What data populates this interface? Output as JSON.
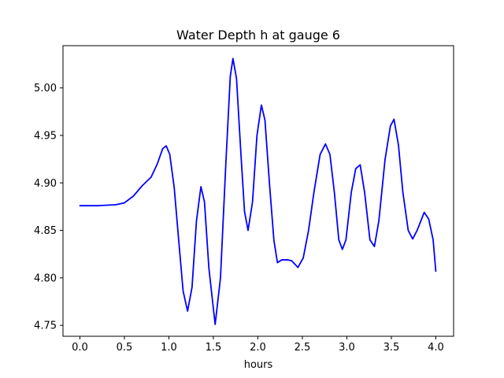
{
  "chart_data": {
    "type": "line",
    "title": "Water Depth h at gauge 6",
    "xlabel": "hours",
    "ylabel": "",
    "xlim": [
      -0.19,
      4.2
    ],
    "ylim": [
      4.7385,
      5.0445
    ],
    "xticks": [
      0.0,
      0.5,
      1.0,
      1.5,
      2.0,
      2.5,
      3.0,
      3.5,
      4.0
    ],
    "xtick_labels": [
      "0.0",
      "0.5",
      "1.0",
      "1.5",
      "2.0",
      "2.5",
      "3.0",
      "3.5",
      "4.0"
    ],
    "yticks": [
      4.75,
      4.8,
      4.85,
      4.9,
      4.95,
      5.0
    ],
    "ytick_labels": [
      "4.75",
      "4.80",
      "4.85",
      "4.90",
      "4.95",
      "5.00"
    ],
    "grid": false,
    "series": [
      {
        "color": "#0000ff",
        "points": [
          [
            0.0,
            4.876
          ],
          [
            0.2,
            4.876
          ],
          [
            0.4,
            4.877
          ],
          [
            0.5,
            4.879
          ],
          [
            0.6,
            4.886
          ],
          [
            0.7,
            4.897
          ],
          [
            0.8,
            4.906
          ],
          [
            0.87,
            4.92
          ],
          [
            0.93,
            4.936
          ],
          [
            0.97,
            4.939
          ],
          [
            1.01,
            4.93
          ],
          [
            1.06,
            4.895
          ],
          [
            1.11,
            4.84
          ],
          [
            1.16,
            4.786
          ],
          [
            1.21,
            4.765
          ],
          [
            1.26,
            4.79
          ],
          [
            1.31,
            4.86
          ],
          [
            1.36,
            4.896
          ],
          [
            1.4,
            4.88
          ],
          [
            1.45,
            4.81
          ],
          [
            1.52,
            4.751
          ],
          [
            1.58,
            4.8
          ],
          [
            1.64,
            4.92
          ],
          [
            1.69,
            5.012
          ],
          [
            1.72,
            5.031
          ],
          [
            1.76,
            5.01
          ],
          [
            1.81,
            4.93
          ],
          [
            1.85,
            4.87
          ],
          [
            1.89,
            4.85
          ],
          [
            1.94,
            4.88
          ],
          [
            1.99,
            4.95
          ],
          [
            2.04,
            4.982
          ],
          [
            2.08,
            4.966
          ],
          [
            2.13,
            4.9
          ],
          [
            2.18,
            4.84
          ],
          [
            2.22,
            4.816
          ],
          [
            2.27,
            4.819
          ],
          [
            2.33,
            4.819
          ],
          [
            2.38,
            4.818
          ],
          [
            2.45,
            4.811
          ],
          [
            2.51,
            4.821
          ],
          [
            2.57,
            4.85
          ],
          [
            2.63,
            4.89
          ],
          [
            2.7,
            4.93
          ],
          [
            2.76,
            4.941
          ],
          [
            2.81,
            4.93
          ],
          [
            2.86,
            4.89
          ],
          [
            2.91,
            4.84
          ],
          [
            2.95,
            4.83
          ],
          [
            2.99,
            4.84
          ],
          [
            3.05,
            4.89
          ],
          [
            3.1,
            4.915
          ],
          [
            3.15,
            4.919
          ],
          [
            3.2,
            4.89
          ],
          [
            3.26,
            4.84
          ],
          [
            3.31,
            4.833
          ],
          [
            3.36,
            4.86
          ],
          [
            3.43,
            4.925
          ],
          [
            3.49,
            4.96
          ],
          [
            3.53,
            4.967
          ],
          [
            3.58,
            4.94
          ],
          [
            3.63,
            4.89
          ],
          [
            3.69,
            4.85
          ],
          [
            3.74,
            4.841
          ],
          [
            3.79,
            4.85
          ],
          [
            3.87,
            4.869
          ],
          [
            3.92,
            4.862
          ],
          [
            3.97,
            4.84
          ],
          [
            4.0,
            4.807
          ]
        ]
      }
    ]
  }
}
